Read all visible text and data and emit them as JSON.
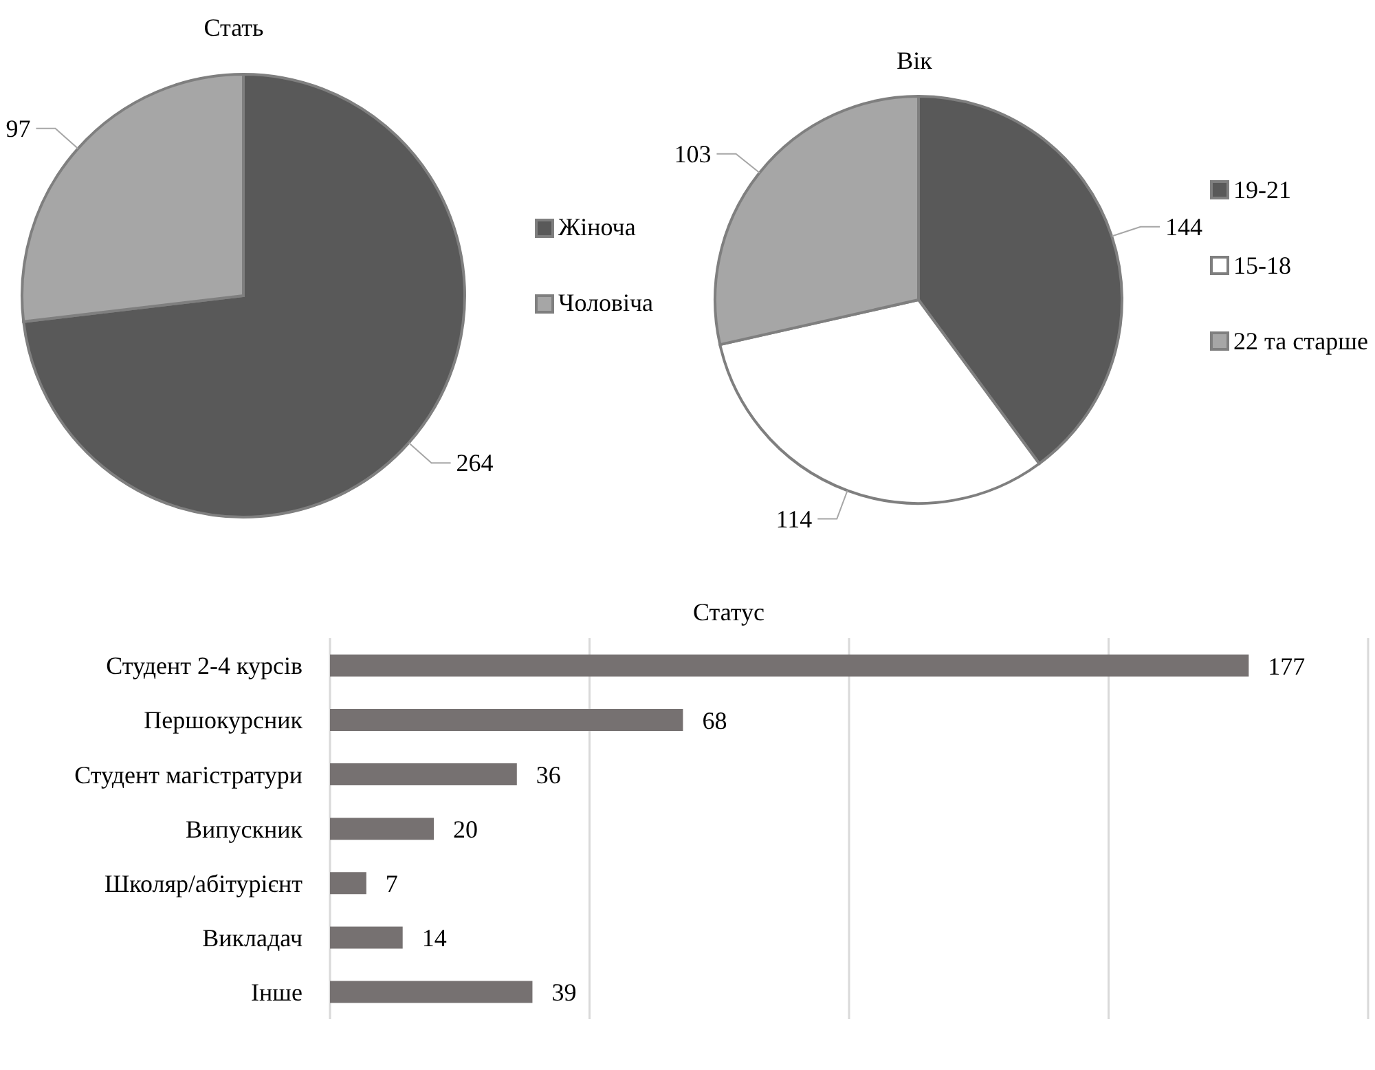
{
  "chart_data": [
    {
      "type": "pie",
      "title": "Стать",
      "categories": [
        "Жіноча",
        "Чоловіча"
      ],
      "values": [
        264,
        97
      ],
      "colors": [
        "#595959",
        "#a6a6a6"
      ],
      "legend": "right",
      "data_labels": true
    },
    {
      "type": "pie",
      "title": "Вік",
      "categories": [
        "19-21",
        "15-18",
        "22 та старше"
      ],
      "values": [
        144,
        114,
        103
      ],
      "colors": [
        "#595959",
        "#ffffff",
        "#a6a6a6"
      ],
      "legend": "right",
      "data_labels": true
    },
    {
      "type": "bar",
      "orientation": "horizontal",
      "title": "Статус",
      "categories": [
        "Студент 2-4 курсів",
        "Першокурсник",
        "Студент магістратури",
        "Випускник",
        "Школяр/абітурієнт",
        "Викладач",
        "Інше"
      ],
      "values": [
        177,
        68,
        36,
        20,
        7,
        14,
        39
      ],
      "color": "#767171",
      "xlim": [
        0,
        200
      ],
      "grid": "x",
      "tick_labels": "y",
      "data_labels": true
    }
  ]
}
